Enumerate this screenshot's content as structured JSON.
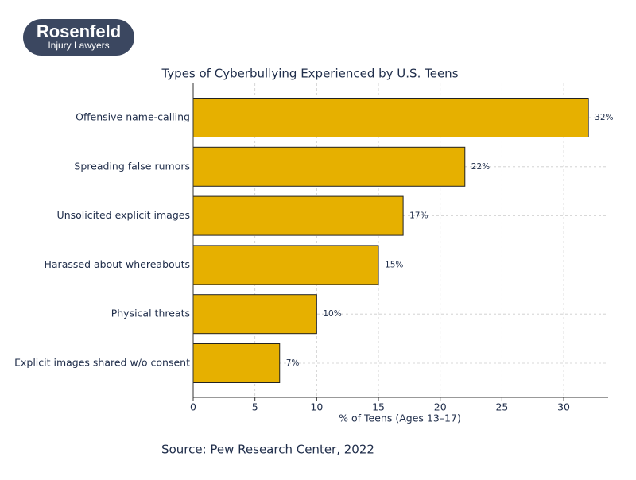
{
  "logo": {
    "name": "Rosenfeld",
    "tagline": "Injury Lawyers"
  },
  "chart_data": {
    "type": "barh",
    "title": "Types of Cyberbullying Experienced by U.S. Teens",
    "x_label": "% of Teens (Ages 13–17)",
    "categories": [
      "Offensive name-calling",
      "Spreading false rumors",
      "Unsolicited explicit images",
      "Harassed about whereabouts",
      "Physical threats",
      "Explicit images shared w/o consent"
    ],
    "values": [
      32,
      22,
      17,
      15,
      10,
      7
    ],
    "value_labels": [
      "32%",
      "22%",
      "17%",
      "15%",
      "10%",
      "7%"
    ],
    "color": "#e6b000",
    "xlim": [
      0,
      33.6
    ],
    "xticks": [
      0,
      5,
      10,
      15,
      20,
      25,
      30
    ],
    "grid": true
  },
  "source": "Source: Pew Research Center, 2022"
}
